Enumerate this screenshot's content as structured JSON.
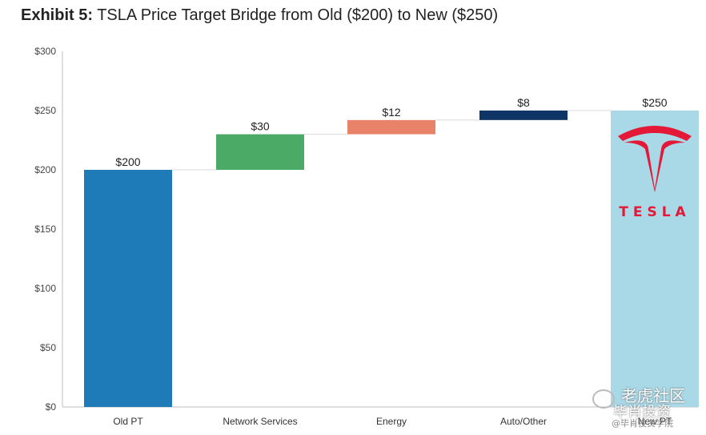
{
  "title": {
    "exhibit": "Exhibit 5:",
    "text": "TSLA Price Target Bridge from Old ($200) to New ($250)"
  },
  "chart_data": {
    "type": "bar",
    "variant": "waterfall",
    "categories": [
      "Old PT",
      "Network Services",
      "Energy",
      "Auto/Other",
      "New PT"
    ],
    "values": [
      200,
      30,
      12,
      8,
      250
    ],
    "bases": [
      0,
      200,
      230,
      242,
      0
    ],
    "data_labels": [
      "$200",
      "$30",
      "$12",
      "$8",
      "$250"
    ],
    "colors": [
      "#1f7ab8",
      "#4caa67",
      "#e8836a",
      "#0f3466",
      "#a9d8e6"
    ],
    "ylim": [
      0,
      300
    ],
    "yticks": [
      0,
      50,
      100,
      150,
      200,
      250,
      300
    ],
    "ytick_labels": [
      "$0",
      "$50",
      "$100",
      "$150",
      "$200",
      "$250",
      "$300"
    ],
    "xlabel": "",
    "ylabel": "",
    "grid": false,
    "legend": "none"
  },
  "logo": {
    "wordmark": "TESLA",
    "color": "#e31937"
  },
  "watermark": {
    "line1": "老虎社区",
    "line2": "毕肖投资",
    "line3": "@毕肖投资学院",
    "icon": "wechat-icon"
  }
}
